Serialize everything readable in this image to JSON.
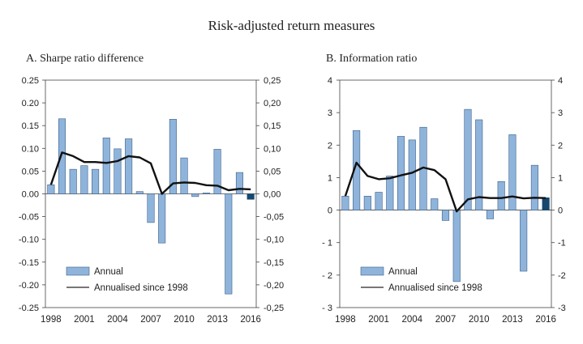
{
  "title": "Risk-adjusted return measures",
  "colors": {
    "bar": "#8fb4dc",
    "bar_edge": "#3d5f86",
    "bar_highlight": "#17476e",
    "line": "#111111",
    "frame": "#444444"
  },
  "chart_data": [
    {
      "type": "bar",
      "panel_title": "A. Sharpe ratio difference",
      "x": [
        1998,
        1999,
        2000,
        2001,
        2002,
        2003,
        2004,
        2005,
        2006,
        2007,
        2008,
        2009,
        2010,
        2011,
        2012,
        2013,
        2014,
        2015,
        2016
      ],
      "x_tick_labels": [
        "1998",
        "2001",
        "2004",
        "2007",
        "2010",
        "2013",
        "2016"
      ],
      "series": [
        {
          "name": "Annual",
          "type": "bar",
          "values": [
            0.02,
            0.165,
            0.054,
            0.062,
            0.054,
            0.123,
            0.099,
            0.121,
            0.005,
            -0.063,
            -0.108,
            0.164,
            0.079,
            -0.006,
            0.002,
            0.098,
            -0.22,
            0.047,
            -0.012
          ],
          "highlight_last": true
        },
        {
          "name": "Annualised since 1998",
          "type": "line",
          "values": [
            0.02,
            0.091,
            0.083,
            0.07,
            0.07,
            0.068,
            0.072,
            0.083,
            0.08,
            0.067,
            0.0,
            0.023,
            0.025,
            0.024,
            0.019,
            0.018,
            0.008,
            0.011,
            0.01
          ]
        }
      ],
      "ylim": [
        -0.25,
        0.25
      ],
      "y_ticks_left": [
        "0.25",
        "0.20",
        "0.15",
        "0.10",
        "0.05",
        "0.00",
        "-0.05",
        "-0.10",
        "-0.15",
        "-0.20",
        "-0.25"
      ],
      "y_ticks_right": [
        "0,25",
        "0,20",
        "0,15",
        "0,10",
        "0,05",
        "0,00",
        "-0,05",
        "-0,10",
        "-0,15",
        "-0,20",
        "-0,25"
      ],
      "legend": {
        "position": "bottom-left",
        "items": [
          "Annual",
          "Annualised since 1998"
        ]
      }
    },
    {
      "type": "bar",
      "panel_title": "B. Information ratio",
      "x": [
        1998,
        1999,
        2000,
        2001,
        2002,
        2003,
        2004,
        2005,
        2006,
        2007,
        2008,
        2009,
        2010,
        2011,
        2012,
        2013,
        2014,
        2015,
        2016
      ],
      "x_tick_labels": [
        "1998",
        "2001",
        "2004",
        "2007",
        "2010",
        "2013",
        "2016"
      ],
      "series": [
        {
          "name": "Annual",
          "type": "bar",
          "values": [
            0.43,
            2.45,
            0.43,
            0.55,
            1.05,
            2.27,
            2.16,
            2.55,
            0.35,
            -0.32,
            -2.2,
            3.1,
            2.78,
            -0.27,
            0.88,
            2.32,
            -1.88,
            1.38,
            0.38
          ],
          "highlight_last": true
        },
        {
          "name": "Annualised since 1998",
          "type": "line",
          "values": [
            0.43,
            1.46,
            1.05,
            0.95,
            0.98,
            1.07,
            1.15,
            1.31,
            1.23,
            0.95,
            -0.04,
            0.33,
            0.4,
            0.37,
            0.37,
            0.42,
            0.36,
            0.38,
            0.37
          ]
        }
      ],
      "ylim": [
        -3,
        4
      ],
      "y_ticks_left": [
        "4",
        "3",
        "2",
        "1",
        "0",
        "- 1",
        "- 2",
        "- 3"
      ],
      "y_ticks_right": [
        "4",
        "3",
        "2",
        "1",
        "0",
        "-1",
        "-2",
        "-3"
      ],
      "legend": {
        "position": "bottom-left",
        "items": [
          "Annual",
          "Annualised since 1998"
        ]
      }
    }
  ]
}
